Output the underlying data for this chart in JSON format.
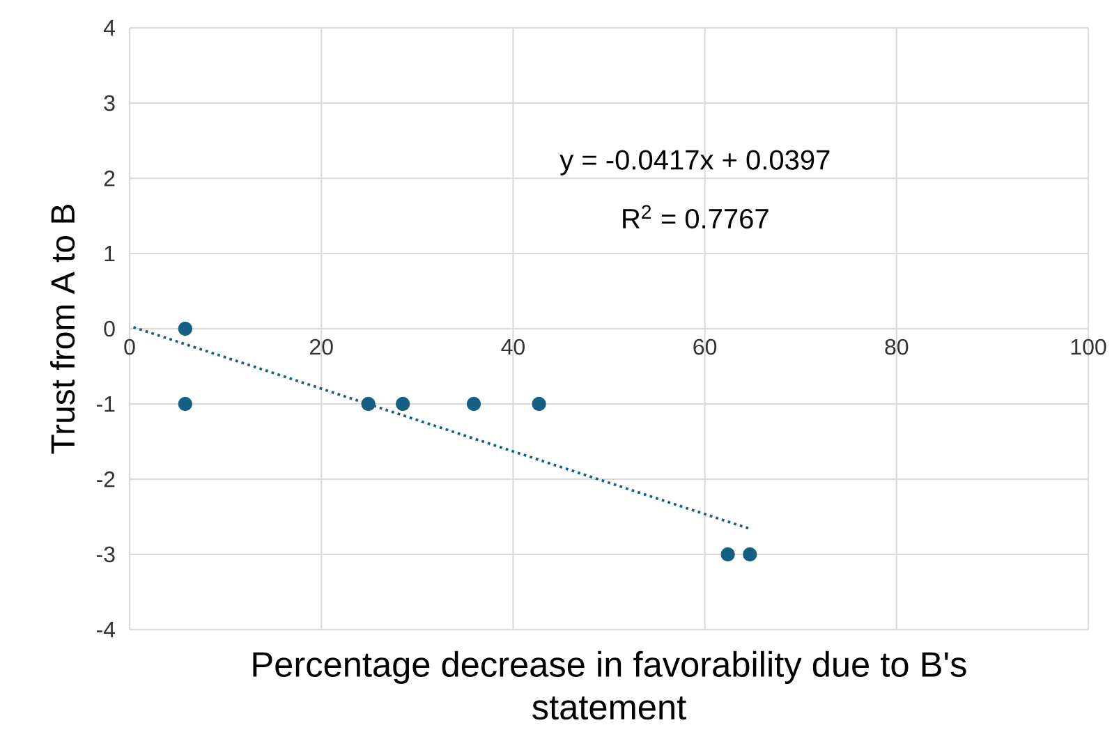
{
  "chart_data": {
    "type": "scatter",
    "xlabel": "Percentage decrease in favorability due to B's statement",
    "ylabel": "Trust from A to B",
    "xlim": [
      0,
      100
    ],
    "ylim": [
      -4,
      4
    ],
    "xticks": [
      0,
      20,
      40,
      60,
      80,
      100
    ],
    "yticks": [
      -4,
      -3,
      -2,
      -1,
      0,
      1,
      2,
      3,
      4
    ],
    "grid": true,
    "marker": "circle",
    "series": [
      {
        "color": "#156082",
        "x": [
          5.8,
          5.8,
          24.9,
          28.5,
          35.9,
          42.7,
          62.4,
          64.7
        ],
        "values": [
          0,
          -1,
          -1,
          -1,
          -1,
          -1,
          -3,
          -3
        ]
      },
      {
        "type": "line",
        "color": "#156082",
        "line_style": "dotted",
        "marker": "none",
        "x": [
          0.4,
          64.7
        ],
        "values": [
          0.02,
          -2.66
        ]
      }
    ],
    "annotations": [
      "y = -0.0417x + 0.0397",
      "R$^{2}$ = 0.7767"
    ]
  }
}
